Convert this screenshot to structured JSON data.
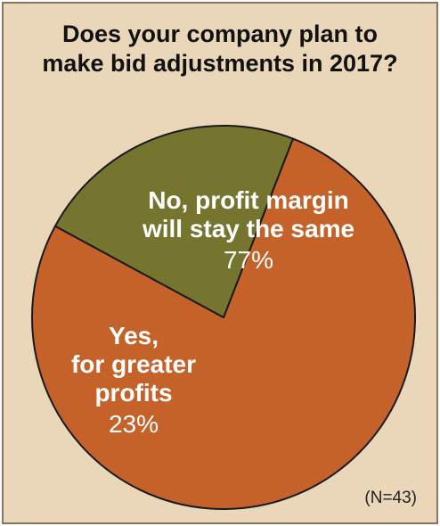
{
  "chart_data": {
    "type": "pie",
    "title_lines": [
      "Does your company plan to",
      "make bid adjustments in 2017?"
    ],
    "slices": [
      {
        "label_lines": [
          "No, profit margin",
          "will stay the same"
        ],
        "percent_label": "77%",
        "value": 77,
        "color": "#c4622a"
      },
      {
        "label_lines": [
          "Yes,",
          "for greater",
          "profits"
        ],
        "percent_label": "23%",
        "value": 23,
        "color": "#757530"
      }
    ],
    "note": "(N=43)"
  },
  "colors": {
    "background": "#ead6b8",
    "border": "#8a7560",
    "slice_stroke": "#1a1a1a"
  }
}
